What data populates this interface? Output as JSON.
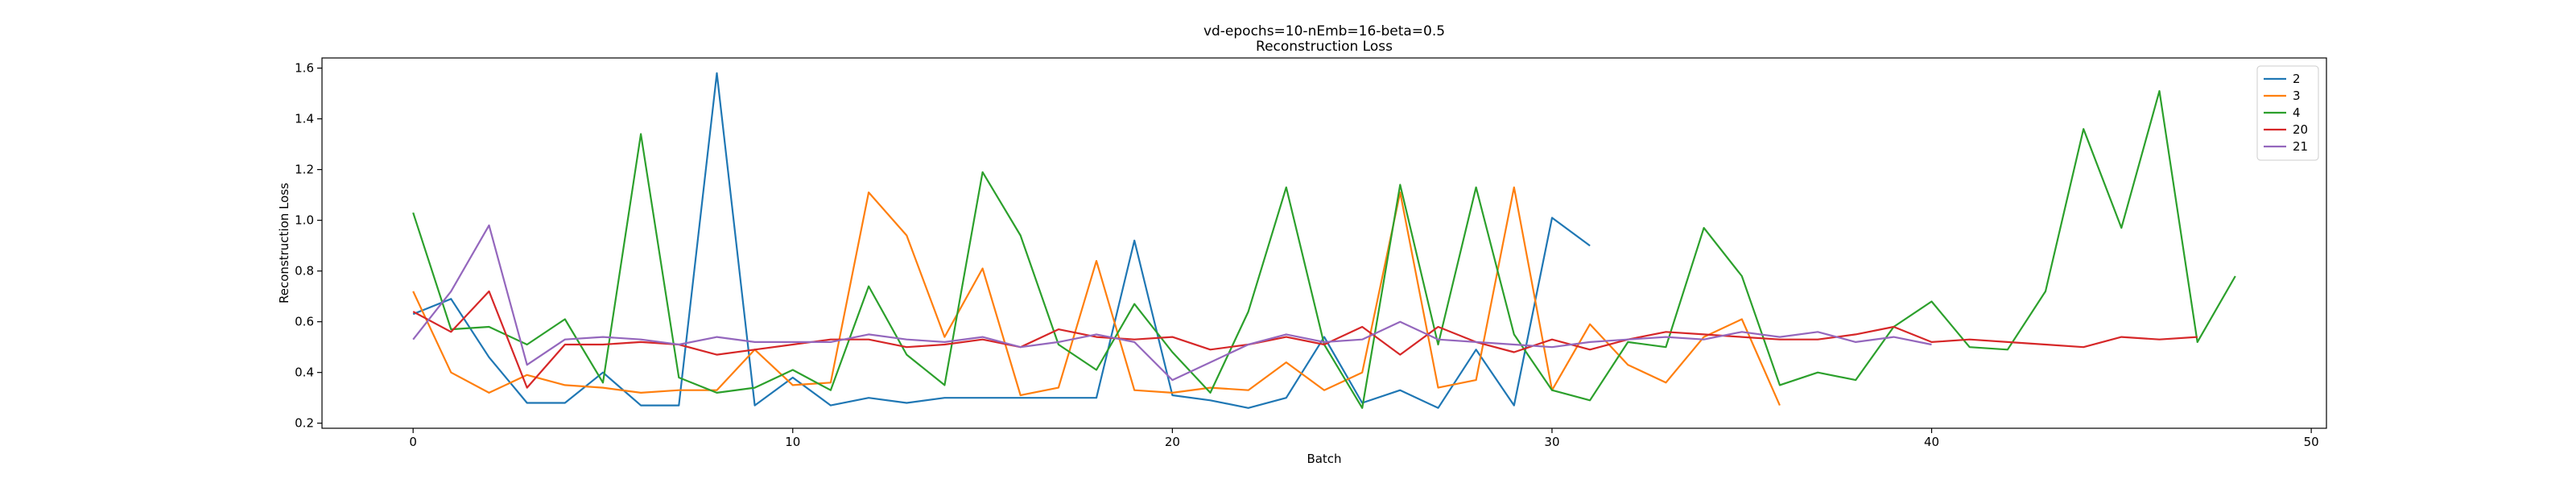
{
  "chart_data": {
    "type": "line",
    "title": "vd-epochs=10-nEmb=16-beta=0.5",
    "subtitle": "Reconstruction Loss",
    "xlabel": "Batch",
    "ylabel": "Reconstruction Loss",
    "xlim": [
      -2.4,
      50.4
    ],
    "ylim": [
      0.18,
      1.64
    ],
    "xticks": [
      0,
      10,
      20,
      30,
      40,
      50
    ],
    "yticks": [
      0.2,
      0.4,
      0.6,
      0.8,
      1.0,
      1.2,
      1.4,
      1.6
    ],
    "xtick_labels": [
      "0",
      "10",
      "20",
      "30",
      "40",
      "50"
    ],
    "ytick_labels": [
      "0.2",
      "0.4",
      "0.6",
      "0.8",
      "1.0",
      "1.2",
      "1.4",
      "1.6"
    ],
    "grid": false,
    "legend": "top-right",
    "series": [
      {
        "name": "2",
        "color": "#1f77b4",
        "x_start": 0,
        "values": [
          0.63,
          0.69,
          0.46,
          0.28,
          0.28,
          0.4,
          0.27,
          0.27,
          1.58,
          0.27,
          0.38,
          0.27,
          0.3,
          0.28,
          0.3,
          0.3,
          0.3,
          0.3,
          0.3,
          0.92,
          0.31,
          0.29,
          0.26,
          0.3,
          0.54,
          0.28,
          0.33,
          0.26,
          0.49,
          0.27,
          1.01,
          0.9
        ]
      },
      {
        "name": "3",
        "color": "#ff7f0e",
        "x_start": 0,
        "values": [
          0.72,
          0.4,
          0.32,
          0.39,
          0.35,
          0.34,
          0.32,
          0.33,
          0.33,
          0.49,
          0.35,
          0.36,
          1.11,
          0.94,
          0.54,
          0.81,
          0.31,
          0.34,
          0.84,
          0.33,
          0.32,
          0.34,
          0.33,
          0.44,
          0.33,
          0.4,
          1.11,
          0.34,
          0.37,
          1.13,
          0.33,
          0.59,
          0.43,
          0.36,
          0.54,
          0.61,
          0.27
        ]
      },
      {
        "name": "4",
        "color": "#2ca02c",
        "x_start": 0,
        "values": [
          1.03,
          0.57,
          0.58,
          0.51,
          0.61,
          0.36,
          1.34,
          0.38,
          0.32,
          0.34,
          0.41,
          0.33,
          0.74,
          0.47,
          0.35,
          1.19,
          0.94,
          0.51,
          0.41,
          0.67,
          0.48,
          0.32,
          0.64,
          1.13,
          0.51,
          0.26,
          1.14,
          0.51,
          1.13,
          0.55,
          0.33,
          0.29,
          0.52,
          0.5,
          0.97,
          0.78,
          0.35,
          0.4,
          0.37,
          0.58,
          0.68,
          0.5,
          0.49,
          0.72,
          1.36,
          0.97,
          1.51,
          0.52,
          0.78
        ]
      },
      {
        "name": "20",
        "color": "#d62728",
        "x_start": 0,
        "values": [
          0.64,
          0.56,
          0.72,
          0.34,
          0.51,
          0.51,
          0.52,
          0.51,
          0.47,
          0.49,
          0.51,
          0.53,
          0.53,
          0.5,
          0.51,
          0.53,
          0.5,
          0.57,
          0.54,
          0.53,
          0.54,
          0.49,
          0.51,
          0.54,
          0.51,
          0.58,
          0.47,
          0.58,
          0.52,
          0.48,
          0.53,
          0.49,
          0.53,
          0.56,
          0.55,
          0.54,
          0.53,
          0.53,
          0.55,
          0.58,
          0.52,
          0.53,
          0.52,
          0.51,
          0.5,
          0.54,
          0.53,
          0.54
        ]
      },
      {
        "name": "21",
        "color": "#9467bd",
        "x_start": 0,
        "values": [
          0.53,
          0.72,
          0.98,
          0.43,
          0.53,
          0.54,
          0.53,
          0.51,
          0.54,
          0.52,
          0.52,
          0.52,
          0.55,
          0.53,
          0.52,
          0.54,
          0.5,
          0.52,
          0.55,
          0.52,
          0.37,
          0.44,
          0.51,
          0.55,
          0.52,
          0.53,
          0.6,
          0.53,
          0.52,
          0.51,
          0.5,
          0.52,
          0.53,
          0.54,
          0.53,
          0.56,
          0.54,
          0.56,
          0.52,
          0.54,
          0.51
        ]
      }
    ]
  }
}
